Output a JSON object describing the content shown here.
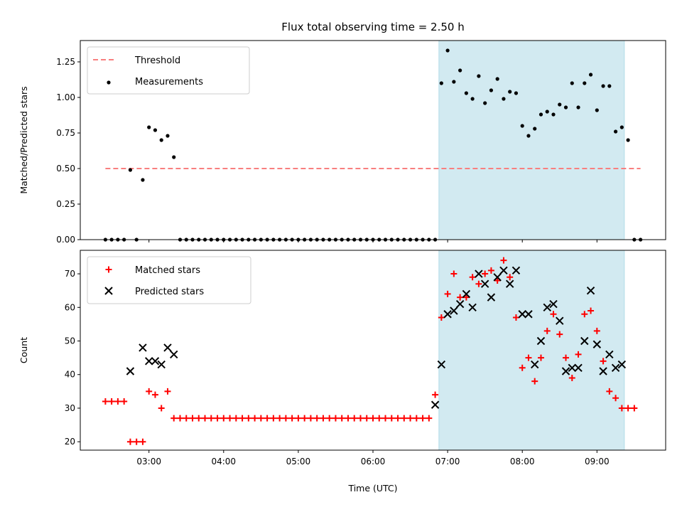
{
  "figure": {
    "title": "Flux total observing time = 2.50 h"
  },
  "chart_data": [
    {
      "type": "scatter",
      "ylabel": "Matched/Predicted stars",
      "xlabel": "",
      "ylim": [
        0,
        1.4
      ],
      "yticks": [
        0.0,
        0.25,
        0.5,
        0.75,
        1.0,
        1.25
      ],
      "ytick_labels": [
        "0.00",
        "0.25",
        "0.50",
        "0.75",
        "1.00",
        "1.25"
      ],
      "xlim_hours": [
        2.08,
        9.92
      ],
      "grid": false,
      "legend": {
        "placement": "top-left",
        "entries": [
          {
            "label": "Threshold",
            "style": "dashed-line",
            "color": "#f87f7f"
          },
          {
            "label": "Measurements",
            "style": "dot",
            "color": "#000000"
          }
        ]
      },
      "observing_window": {
        "start": "06:53",
        "end": "09:22",
        "color": "#add8e6"
      },
      "threshold": {
        "value": 0.5,
        "x_start": "02:25",
        "x_end": "09:35",
        "color": "#f87f7f"
      },
      "series": [
        {
          "name": "Measurements",
          "points": [
            [
              "02:25",
              0
            ],
            [
              "02:30",
              0
            ],
            [
              "02:35",
              0
            ],
            [
              "02:40",
              0
            ],
            [
              "02:45",
              0.49
            ],
            [
              "02:50",
              0
            ],
            [
              "02:55",
              0.42
            ],
            [
              "03:00",
              0.79
            ],
            [
              "03:05",
              0.77
            ],
            [
              "03:10",
              0.7
            ],
            [
              "03:15",
              0.73
            ],
            [
              "03:20",
              0.58
            ],
            [
              "03:25",
              0
            ],
            [
              "03:30",
              0
            ],
            [
              "03:35",
              0
            ],
            [
              "03:40",
              0
            ],
            [
              "03:45",
              0
            ],
            [
              "03:50",
              0
            ],
            [
              "03:55",
              0
            ],
            [
              "04:00",
              0
            ],
            [
              "04:05",
              0
            ],
            [
              "04:10",
              0
            ],
            [
              "04:15",
              0
            ],
            [
              "04:20",
              0
            ],
            [
              "04:25",
              0
            ],
            [
              "04:30",
              0
            ],
            [
              "04:35",
              0
            ],
            [
              "04:40",
              0
            ],
            [
              "04:45",
              0
            ],
            [
              "04:50",
              0
            ],
            [
              "04:55",
              0
            ],
            [
              "05:00",
              0
            ],
            [
              "05:05",
              0
            ],
            [
              "05:10",
              0
            ],
            [
              "05:15",
              0
            ],
            [
              "05:20",
              0
            ],
            [
              "05:25",
              0
            ],
            [
              "05:30",
              0
            ],
            [
              "05:35",
              0
            ],
            [
              "05:40",
              0
            ],
            [
              "05:45",
              0
            ],
            [
              "05:50",
              0
            ],
            [
              "05:55",
              0
            ],
            [
              "06:00",
              0
            ],
            [
              "06:05",
              0
            ],
            [
              "06:10",
              0
            ],
            [
              "06:15",
              0
            ],
            [
              "06:20",
              0
            ],
            [
              "06:25",
              0
            ],
            [
              "06:30",
              0
            ],
            [
              "06:35",
              0
            ],
            [
              "06:40",
              0
            ],
            [
              "06:45",
              0
            ],
            [
              "06:50",
              0
            ],
            [
              "06:55",
              1.1
            ],
            [
              "07:00",
              1.33
            ],
            [
              "07:05",
              1.11
            ],
            [
              "07:10",
              1.19
            ],
            [
              "07:15",
              1.03
            ],
            [
              "07:20",
              0.99
            ],
            [
              "07:25",
              1.15
            ],
            [
              "07:30",
              0.96
            ],
            [
              "07:35",
              1.05
            ],
            [
              "07:40",
              1.13
            ],
            [
              "07:45",
              0.99
            ],
            [
              "07:50",
              1.04
            ],
            [
              "07:55",
              1.03
            ],
            [
              "08:00",
              0.8
            ],
            [
              "08:05",
              0.73
            ],
            [
              "08:10",
              0.78
            ],
            [
              "08:15",
              0.88
            ],
            [
              "08:20",
              0.9
            ],
            [
              "08:25",
              0.88
            ],
            [
              "08:30",
              0.95
            ],
            [
              "08:35",
              0.93
            ],
            [
              "08:40",
              1.1
            ],
            [
              "08:45",
              0.93
            ],
            [
              "08:50",
              1.1
            ],
            [
              "08:55",
              1.16
            ],
            [
              "09:00",
              0.91
            ],
            [
              "09:05",
              1.08
            ],
            [
              "09:10",
              1.08
            ],
            [
              "09:15",
              0.76
            ],
            [
              "09:20",
              0.79
            ],
            [
              "09:25",
              0.7
            ],
            [
              "09:30",
              0
            ],
            [
              "09:35",
              0
            ]
          ]
        }
      ]
    },
    {
      "type": "scatter",
      "ylabel": "Count",
      "xlabel": "Time (UTC)",
      "ylim": [
        17.5,
        77
      ],
      "yticks": [
        20,
        30,
        40,
        50,
        60,
        70
      ],
      "ytick_labels": [
        "20",
        "30",
        "40",
        "50",
        "60",
        "70"
      ],
      "xlim_hours": [
        2.08,
        9.92
      ],
      "xticks": [
        "03:00",
        "04:00",
        "05:00",
        "06:00",
        "07:00",
        "08:00",
        "09:00"
      ],
      "grid": false,
      "legend": {
        "placement": "top-left",
        "entries": [
          {
            "label": "Matched stars",
            "style": "plus",
            "color": "#ff0000"
          },
          {
            "label": "Predicted stars",
            "style": "x",
            "color": "#000000"
          }
        ]
      },
      "observing_window": {
        "start": "06:53",
        "end": "09:22",
        "color": "#add8e6"
      },
      "series": [
        {
          "name": "Matched stars",
          "points": [
            [
              "02:25",
              32
            ],
            [
              "02:30",
              32
            ],
            [
              "02:35",
              32
            ],
            [
              "02:40",
              32
            ],
            [
              "02:45",
              20
            ],
            [
              "02:50",
              20
            ],
            [
              "02:55",
              20
            ],
            [
              "03:00",
              35
            ],
            [
              "03:05",
              34
            ],
            [
              "03:10",
              30
            ],
            [
              "03:15",
              35
            ],
            [
              "03:20",
              27
            ],
            [
              "03:25",
              27
            ],
            [
              "03:30",
              27
            ],
            [
              "03:35",
              27
            ],
            [
              "03:40",
              27
            ],
            [
              "03:45",
              27
            ],
            [
              "03:50",
              27
            ],
            [
              "03:55",
              27
            ],
            [
              "04:00",
              27
            ],
            [
              "04:05",
              27
            ],
            [
              "04:10",
              27
            ],
            [
              "04:15",
              27
            ],
            [
              "04:20",
              27
            ],
            [
              "04:25",
              27
            ],
            [
              "04:30",
              27
            ],
            [
              "04:35",
              27
            ],
            [
              "04:40",
              27
            ],
            [
              "04:45",
              27
            ],
            [
              "04:50",
              27
            ],
            [
              "04:55",
              27
            ],
            [
              "05:00",
              27
            ],
            [
              "05:05",
              27
            ],
            [
              "05:10",
              27
            ],
            [
              "05:15",
              27
            ],
            [
              "05:20",
              27
            ],
            [
              "05:25",
              27
            ],
            [
              "05:30",
              27
            ],
            [
              "05:35",
              27
            ],
            [
              "05:40",
              27
            ],
            [
              "05:45",
              27
            ],
            [
              "05:50",
              27
            ],
            [
              "05:55",
              27
            ],
            [
              "06:00",
              27
            ],
            [
              "06:05",
              27
            ],
            [
              "06:10",
              27
            ],
            [
              "06:15",
              27
            ],
            [
              "06:20",
              27
            ],
            [
              "06:25",
              27
            ],
            [
              "06:30",
              27
            ],
            [
              "06:35",
              27
            ],
            [
              "06:40",
              27
            ],
            [
              "06:45",
              27
            ],
            [
              "06:50",
              34
            ],
            [
              "06:55",
              57
            ],
            [
              "07:00",
              64
            ],
            [
              "07:05",
              70
            ],
            [
              "07:10",
              63
            ],
            [
              "07:15",
              63
            ],
            [
              "07:20",
              69
            ],
            [
              "07:25",
              67
            ],
            [
              "07:30",
              70
            ],
            [
              "07:35",
              71
            ],
            [
              "07:40",
              68
            ],
            [
              "07:45",
              74
            ],
            [
              "07:50",
              69
            ],
            [
              "07:55",
              57
            ],
            [
              "08:00",
              42
            ],
            [
              "08:05",
              45
            ],
            [
              "08:10",
              38
            ],
            [
              "08:15",
              45
            ],
            [
              "08:20",
              53
            ],
            [
              "08:25",
              58
            ],
            [
              "08:30",
              52
            ],
            [
              "08:35",
              45
            ],
            [
              "08:40",
              39
            ],
            [
              "08:45",
              46
            ],
            [
              "08:50",
              58
            ],
            [
              "08:55",
              59
            ],
            [
              "09:00",
              53
            ],
            [
              "09:05",
              44
            ],
            [
              "09:10",
              35
            ],
            [
              "09:15",
              33
            ],
            [
              "09:20",
              30
            ],
            [
              "09:25",
              30
            ],
            [
              "09:30",
              30
            ]
          ]
        },
        {
          "name": "Predicted stars",
          "points": [
            [
              "02:45",
              41
            ],
            [
              "02:55",
              48
            ],
            [
              "03:00",
              44
            ],
            [
              "03:05",
              44
            ],
            [
              "03:10",
              43
            ],
            [
              "03:15",
              48
            ],
            [
              "03:20",
              46
            ],
            [
              "06:50",
              31
            ],
            [
              "06:55",
              43
            ],
            [
              "07:00",
              58
            ],
            [
              "07:05",
              59
            ],
            [
              "07:10",
              61
            ],
            [
              "07:15",
              64
            ],
            [
              "07:20",
              60
            ],
            [
              "07:25",
              70
            ],
            [
              "07:30",
              67
            ],
            [
              "07:35",
              63
            ],
            [
              "07:40",
              69
            ],
            [
              "07:45",
              71
            ],
            [
              "07:50",
              67
            ],
            [
              "07:55",
              71
            ],
            [
              "08:00",
              58
            ],
            [
              "08:05",
              58
            ],
            [
              "08:10",
              43
            ],
            [
              "08:15",
              50
            ],
            [
              "08:20",
              60
            ],
            [
              "08:25",
              61
            ],
            [
              "08:30",
              56
            ],
            [
              "08:35",
              41
            ],
            [
              "08:40",
              42
            ],
            [
              "08:45",
              42
            ],
            [
              "08:50",
              50
            ],
            [
              "08:55",
              65
            ],
            [
              "09:00",
              49
            ],
            [
              "09:05",
              41
            ],
            [
              "09:10",
              46
            ],
            [
              "09:15",
              42
            ],
            [
              "09:20",
              43
            ]
          ]
        }
      ]
    }
  ]
}
